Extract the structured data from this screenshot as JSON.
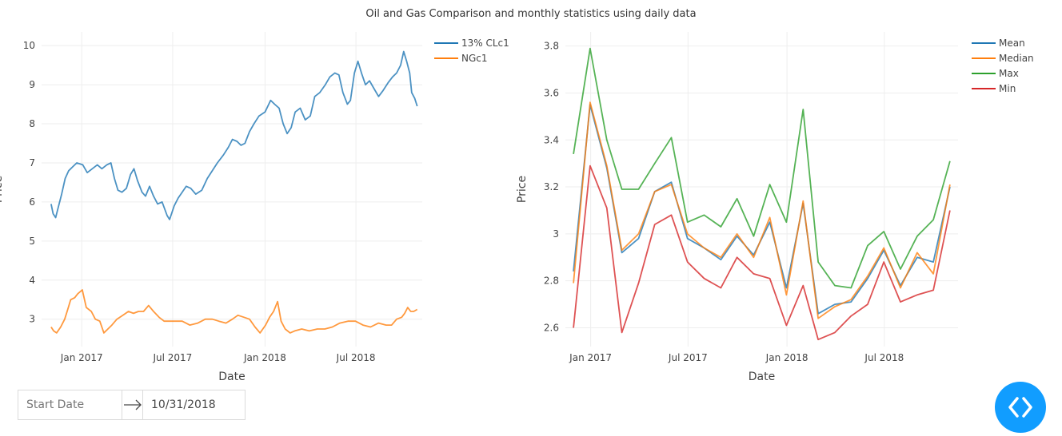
{
  "title": "Oil and Gas Comparison and monthly statistics using daily data",
  "date_range": {
    "start_placeholder": "Start Date",
    "end_value": "10/31/2018"
  },
  "colors": {
    "blue": "#1f77b4",
    "orange": "#ff7f0e",
    "green": "#2ca02c",
    "red": "#d62728",
    "accent": "#119dff"
  },
  "fab_icon": "code-icon",
  "chart_data": [
    {
      "type": "line",
      "xlabel": "Date",
      "ylabel": "Price",
      "ylim": [
        2.3,
        10.35
      ],
      "xlim": [
        "2016-10-13",
        "2018-11-10"
      ],
      "yticks": [
        3,
        4,
        5,
        6,
        7,
        8,
        9,
        10
      ],
      "xticks": [
        {
          "label": "Jan 2017",
          "date": "2017-01-01"
        },
        {
          "label": "Jul 2017",
          "date": "2017-07-01"
        },
        {
          "label": "Jan 2018",
          "date": "2018-01-01"
        },
        {
          "label": "Jul 2018",
          "date": "2018-07-01"
        }
      ],
      "grid": true,
      "legend": "top-right",
      "series": [
        {
          "name": "13% CLc1",
          "color": "#1f77b4",
          "points": [
            [
              "2016-11-01",
              5.95
            ],
            [
              "2016-11-05",
              5.7
            ],
            [
              "2016-11-10",
              5.6
            ],
            [
              "2016-11-15",
              5.85
            ],
            [
              "2016-11-22",
              6.2
            ],
            [
              "2016-11-29",
              6.6
            ],
            [
              "2016-12-06",
              6.8
            ],
            [
              "2016-12-14",
              6.9
            ],
            [
              "2016-12-22",
              7.0
            ],
            [
              "2017-01-03",
              6.95
            ],
            [
              "2017-01-12",
              6.75
            ],
            [
              "2017-01-22",
              6.85
            ],
            [
              "2017-02-01",
              6.95
            ],
            [
              "2017-02-10",
              6.85
            ],
            [
              "2017-02-20",
              6.95
            ],
            [
              "2017-02-28",
              7.0
            ],
            [
              "2017-03-07",
              6.6
            ],
            [
              "2017-03-14",
              6.3
            ],
            [
              "2017-03-22",
              6.25
            ],
            [
              "2017-03-31",
              6.35
            ],
            [
              "2017-04-08",
              6.7
            ],
            [
              "2017-04-15",
              6.85
            ],
            [
              "2017-04-22",
              6.55
            ],
            [
              "2017-05-01",
              6.25
            ],
            [
              "2017-05-08",
              6.15
            ],
            [
              "2017-05-16",
              6.4
            ],
            [
              "2017-05-24",
              6.15
            ],
            [
              "2017-06-01",
              5.95
            ],
            [
              "2017-06-10",
              6.0
            ],
            [
              "2017-06-20",
              5.65
            ],
            [
              "2017-06-25",
              5.55
            ],
            [
              "2017-07-04",
              5.9
            ],
            [
              "2017-07-12",
              6.1
            ],
            [
              "2017-07-20",
              6.25
            ],
            [
              "2017-07-28",
              6.4
            ],
            [
              "2017-08-06",
              6.35
            ],
            [
              "2017-08-16",
              6.2
            ],
            [
              "2017-08-28",
              6.3
            ],
            [
              "2017-09-08",
              6.6
            ],
            [
              "2017-09-18",
              6.8
            ],
            [
              "2017-09-28",
              7.0
            ],
            [
              "2017-10-10",
              7.2
            ],
            [
              "2017-10-20",
              7.4
            ],
            [
              "2017-10-28",
              7.6
            ],
            [
              "2017-11-06",
              7.55
            ],
            [
              "2017-11-14",
              7.45
            ],
            [
              "2017-11-22",
              7.5
            ],
            [
              "2017-12-01",
              7.8
            ],
            [
              "2017-12-10",
              8.0
            ],
            [
              "2017-12-20",
              8.2
            ],
            [
              "2018-01-01",
              8.3
            ],
            [
              "2018-01-12",
              8.6
            ],
            [
              "2018-01-20",
              8.5
            ],
            [
              "2018-01-29",
              8.4
            ],
            [
              "2018-02-06",
              8.0
            ],
            [
              "2018-02-14",
              7.75
            ],
            [
              "2018-02-22",
              7.9
            ],
            [
              "2018-03-02",
              8.3
            ],
            [
              "2018-03-12",
              8.4
            ],
            [
              "2018-03-22",
              8.1
            ],
            [
              "2018-04-01",
              8.2
            ],
            [
              "2018-04-10",
              8.7
            ],
            [
              "2018-04-20",
              8.8
            ],
            [
              "2018-05-01",
              9.0
            ],
            [
              "2018-05-10",
              9.2
            ],
            [
              "2018-05-20",
              9.3
            ],
            [
              "2018-05-28",
              9.25
            ],
            [
              "2018-06-05",
              8.8
            ],
            [
              "2018-06-14",
              8.5
            ],
            [
              "2018-06-20",
              8.6
            ],
            [
              "2018-06-28",
              9.3
            ],
            [
              "2018-07-05",
              9.6
            ],
            [
              "2018-07-12",
              9.3
            ],
            [
              "2018-07-20",
              9.0
            ],
            [
              "2018-07-28",
              9.1
            ],
            [
              "2018-08-06",
              8.9
            ],
            [
              "2018-08-15",
              8.7
            ],
            [
              "2018-08-24",
              8.85
            ],
            [
              "2018-09-03",
              9.05
            ],
            [
              "2018-09-12",
              9.2
            ],
            [
              "2018-09-20",
              9.3
            ],
            [
              "2018-09-28",
              9.5
            ],
            [
              "2018-10-04",
              9.85
            ],
            [
              "2018-10-10",
              9.6
            ],
            [
              "2018-10-16",
              9.3
            ],
            [
              "2018-10-20",
              8.8
            ],
            [
              "2018-10-26",
              8.65
            ],
            [
              "2018-10-31",
              8.45
            ]
          ]
        },
        {
          "name": "NGc1",
          "color": "#ff7f0e",
          "points": [
            [
              "2016-11-01",
              2.8
            ],
            [
              "2016-11-06",
              2.7
            ],
            [
              "2016-11-12",
              2.65
            ],
            [
              "2016-11-20",
              2.8
            ],
            [
              "2016-11-28",
              3.0
            ],
            [
              "2016-12-04",
              3.25
            ],
            [
              "2016-12-10",
              3.5
            ],
            [
              "2016-12-18",
              3.55
            ],
            [
              "2016-12-24",
              3.65
            ],
            [
              "2017-01-02",
              3.75
            ],
            [
              "2017-01-10",
              3.3
            ],
            [
              "2017-01-20",
              3.2
            ],
            [
              "2017-01-28",
              3.0
            ],
            [
              "2017-02-06",
              2.95
            ],
            [
              "2017-02-14",
              2.65
            ],
            [
              "2017-02-22",
              2.75
            ],
            [
              "2017-03-02",
              2.85
            ],
            [
              "2017-03-12",
              3.0
            ],
            [
              "2017-03-24",
              3.1
            ],
            [
              "2017-04-04",
              3.2
            ],
            [
              "2017-04-14",
              3.15
            ],
            [
              "2017-04-24",
              3.2
            ],
            [
              "2017-05-04",
              3.2
            ],
            [
              "2017-05-14",
              3.35
            ],
            [
              "2017-05-24",
              3.2
            ],
            [
              "2017-06-04",
              3.05
            ],
            [
              "2017-06-14",
              2.95
            ],
            [
              "2017-06-24",
              2.95
            ],
            [
              "2017-07-06",
              2.95
            ],
            [
              "2017-07-20",
              2.95
            ],
            [
              "2017-08-04",
              2.85
            ],
            [
              "2017-08-20",
              2.9
            ],
            [
              "2017-09-04",
              3.0
            ],
            [
              "2017-09-18",
              3.0
            ],
            [
              "2017-10-01",
              2.95
            ],
            [
              "2017-10-15",
              2.9
            ],
            [
              "2017-10-28",
              3.0
            ],
            [
              "2017-11-08",
              3.1
            ],
            [
              "2017-11-20",
              3.05
            ],
            [
              "2017-12-01",
              3.0
            ],
            [
              "2017-12-12",
              2.8
            ],
            [
              "2017-12-22",
              2.65
            ],
            [
              "2018-01-02",
              2.85
            ],
            [
              "2018-01-10",
              3.05
            ],
            [
              "2018-01-18",
              3.2
            ],
            [
              "2018-01-26",
              3.45
            ],
            [
              "2018-02-02",
              2.95
            ],
            [
              "2018-02-10",
              2.75
            ],
            [
              "2018-02-20",
              2.65
            ],
            [
              "2018-03-01",
              2.7
            ],
            [
              "2018-03-15",
              2.75
            ],
            [
              "2018-03-30",
              2.7
            ],
            [
              "2018-04-15",
              2.75
            ],
            [
              "2018-04-30",
              2.75
            ],
            [
              "2018-05-15",
              2.8
            ],
            [
              "2018-05-30",
              2.9
            ],
            [
              "2018-06-15",
              2.95
            ],
            [
              "2018-06-30",
              2.95
            ],
            [
              "2018-07-15",
              2.85
            ],
            [
              "2018-07-30",
              2.8
            ],
            [
              "2018-08-15",
              2.9
            ],
            [
              "2018-08-30",
              2.85
            ],
            [
              "2018-09-10",
              2.85
            ],
            [
              "2018-09-20",
              3.0
            ],
            [
              "2018-09-30",
              3.05
            ],
            [
              "2018-10-06",
              3.15
            ],
            [
              "2018-10-12",
              3.3
            ],
            [
              "2018-10-18",
              3.2
            ],
            [
              "2018-10-24",
              3.2
            ],
            [
              "2018-10-31",
              3.25
            ]
          ]
        }
      ]
    },
    {
      "type": "line",
      "xlabel": "Date",
      "ylabel": "Price",
      "ylim": [
        2.52,
        3.86
      ],
      "xlim": [
        "2016-11-15",
        "2018-11-15"
      ],
      "yticks": [
        2.6,
        2.8,
        3.0,
        3.2,
        3.4,
        3.6,
        3.8
      ],
      "ytick_labels": [
        "2.6",
        "2.8",
        "3",
        "3.2",
        "3.4",
        "3.6",
        "3.8"
      ],
      "xticks": [
        {
          "label": "Jan 2017",
          "date": "2017-01-01"
        },
        {
          "label": "Jul 2017",
          "date": "2017-07-01"
        },
        {
          "label": "Jan 2018",
          "date": "2018-01-01"
        },
        {
          "label": "Jul 2018",
          "date": "2018-07-01"
        }
      ],
      "grid": true,
      "legend": "top-right",
      "x": [
        "2016-11-30",
        "2016-12-31",
        "2017-01-31",
        "2017-02-28",
        "2017-03-31",
        "2017-04-30",
        "2017-05-31",
        "2017-06-30",
        "2017-07-31",
        "2017-08-31",
        "2017-09-30",
        "2017-10-31",
        "2017-11-30",
        "2017-12-31",
        "2018-01-31",
        "2018-02-28",
        "2018-03-31",
        "2018-04-30",
        "2018-05-31",
        "2018-06-30",
        "2018-07-31",
        "2018-08-31",
        "2018-09-30",
        "2018-10-31"
      ],
      "series": [
        {
          "name": "Mean",
          "color": "#1f77b4",
          "values": [
            2.84,
            3.55,
            3.28,
            2.92,
            2.98,
            3.18,
            3.22,
            2.98,
            2.94,
            2.89,
            2.99,
            2.91,
            3.05,
            2.77,
            3.13,
            2.66,
            2.7,
            2.71,
            2.81,
            2.93,
            2.78,
            2.9,
            2.88,
            3.2
          ]
        },
        {
          "name": "Median",
          "color": "#ff7f0e",
          "values": [
            2.79,
            3.56,
            3.29,
            2.93,
            3.0,
            3.18,
            3.21,
            3.0,
            2.94,
            2.9,
            3.0,
            2.9,
            3.07,
            2.74,
            3.14,
            2.64,
            2.69,
            2.72,
            2.82,
            2.94,
            2.77,
            2.92,
            2.83,
            3.21
          ]
        },
        {
          "name": "Max",
          "color": "#2ca02c",
          "values": [
            3.34,
            3.79,
            3.4,
            3.19,
            3.19,
            3.3,
            3.41,
            3.05,
            3.08,
            3.03,
            3.15,
            2.99,
            3.21,
            3.05,
            3.53,
            2.88,
            2.78,
            2.77,
            2.95,
            3.01,
            2.85,
            2.99,
            3.06,
            3.31
          ]
        },
        {
          "name": "Min",
          "color": "#d62728",
          "values": [
            2.6,
            3.29,
            3.11,
            2.58,
            2.79,
            3.04,
            3.08,
            2.88,
            2.81,
            2.77,
            2.9,
            2.83,
            2.81,
            2.61,
            2.78,
            2.55,
            2.58,
            2.65,
            2.7,
            2.88,
            2.71,
            2.74,
            2.76,
            3.1
          ]
        }
      ]
    }
  ]
}
